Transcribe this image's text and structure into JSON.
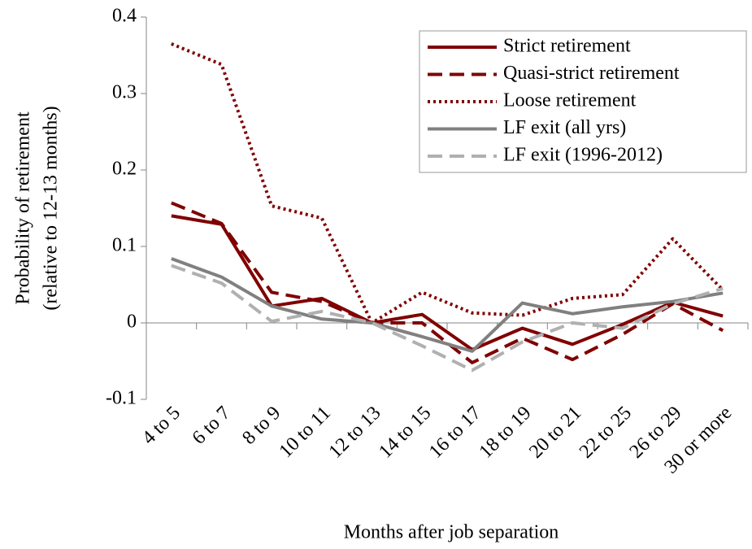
{
  "chart_data": {
    "type": "line",
    "x_label": "Months after job separation",
    "y_label": [
      "Probability of retirement",
      "(relative to 12-13 months)"
    ],
    "categories": [
      "4 to 5",
      "6 to 7",
      "8 to 9",
      "10 to 11",
      "12 to 13",
      "14 to 15",
      "16 to 17",
      "18 to 19",
      "20 to 21",
      "22 to 25",
      "26 to 29",
      "30 or more"
    ],
    "series": [
      {
        "name": "Strict retirement",
        "color": "#800000",
        "dash": "solid",
        "values": [
          0.14,
          0.129,
          0.022,
          0.032,
          0,
          0.011,
          -0.035,
          -0.007,
          -0.028,
          -0.002,
          0.027,
          0.009
        ]
      },
      {
        "name": "Quasi-strict retirement",
        "color": "#800000",
        "dash": "dashed",
        "values": [
          0.157,
          0.13,
          0.04,
          0.028,
          0,
          0,
          -0.052,
          -0.02,
          -0.048,
          -0.015,
          0.025,
          -0.01
        ]
      },
      {
        "name": "Loose retirement",
        "color": "#800000",
        "dash": "dotted",
        "values": [
          0.365,
          0.338,
          0.153,
          0.137,
          0,
          0.04,
          0.013,
          0.01,
          0.032,
          0.037,
          0.11,
          0.043
        ]
      },
      {
        "name": "LF exit (all yrs)",
        "color": "#808080",
        "dash": "solid",
        "values": [
          0.084,
          0.06,
          0.022,
          0.005,
          0,
          -0.018,
          -0.037,
          0.026,
          0.012,
          0.021,
          0.028,
          0.039
        ]
      },
      {
        "name": "LF exit (1996-2012)",
        "color": "#b0b0b0",
        "dash": "dashed",
        "values": [
          0.075,
          0.052,
          0.002,
          0.015,
          0,
          -0.03,
          -0.062,
          -0.025,
          0,
          -0.007,
          0.025,
          0.045
        ]
      }
    ],
    "ylim": [
      -0.1,
      0.4
    ],
    "yticks": [
      -0.1,
      0,
      0.1,
      0.2,
      0.3,
      0.4
    ],
    "legend": "upper right",
    "grid": false
  }
}
